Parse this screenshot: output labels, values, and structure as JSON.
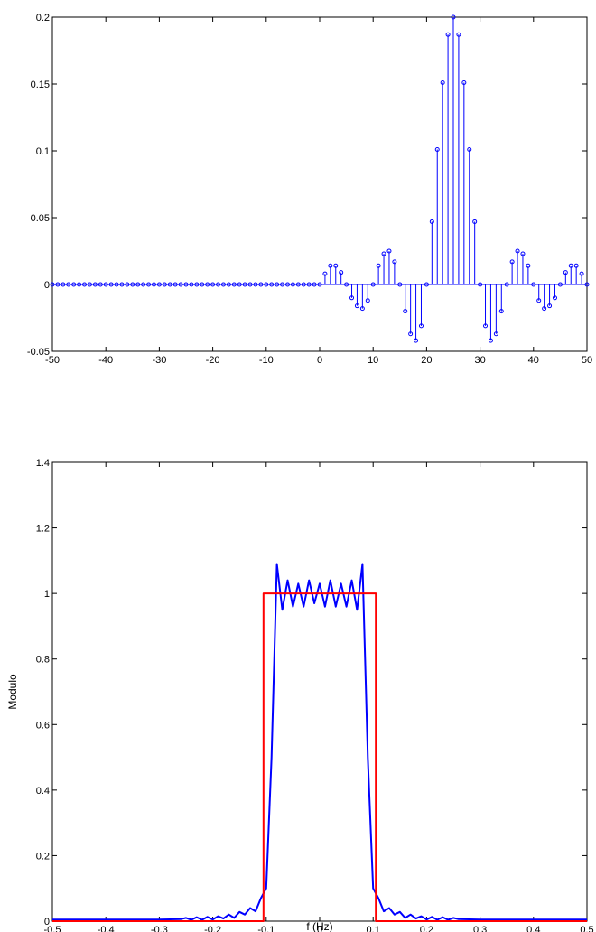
{
  "chart_data": [
    {
      "type": "stem",
      "title": "",
      "xlabel": "",
      "ylabel": "",
      "xlim": [
        -50,
        50
      ],
      "ylim": [
        -0.05,
        0.2
      ],
      "xticks": [
        -50,
        -40,
        -30,
        -20,
        -10,
        0,
        10,
        20,
        30,
        40,
        50
      ],
      "xtick_labels": [
        "-50",
        "-40",
        "-30",
        "-20",
        "-10",
        "0",
        "10",
        "20",
        "30",
        "40",
        "50"
      ],
      "yticks": [
        -0.05,
        0,
        0.05,
        0.1,
        0.15,
        0.2
      ],
      "ytick_labels": [
        "-0.05",
        "0",
        "0.05",
        "0.1",
        "0.15",
        "0.2"
      ],
      "color": "#0000ff",
      "x_start": -50,
      "x_step": 1,
      "values": [
        0,
        0,
        0,
        0,
        0,
        0,
        0,
        0,
        0,
        0,
        0,
        0,
        0,
        0,
        0,
        0,
        0,
        0,
        0,
        0,
        0,
        0,
        0,
        0,
        0,
        0,
        0,
        0,
        0,
        0,
        0,
        0,
        0,
        0,
        0,
        0,
        0,
        0,
        0,
        0,
        0,
        0,
        0,
        0,
        0,
        0,
        0,
        0,
        0,
        0,
        0,
        0.008,
        0.014,
        0.014,
        0.009,
        0,
        -0.01,
        -0.016,
        -0.018,
        -0.012,
        0,
        0.014,
        0.023,
        0.025,
        0.017,
        0,
        -0.02,
        -0.037,
        -0.042,
        -0.031,
        0,
        0.047,
        0.101,
        0.151,
        0.187,
        0.2,
        0.187,
        0.151,
        0.101,
        0.047,
        0,
        -0.031,
        -0.042,
        -0.037,
        -0.02,
        0,
        0.017,
        0.025,
        0.023,
        0.014,
        0,
        -0.012,
        -0.018,
        -0.016,
        -0.01,
        0,
        0.009,
        0.014,
        0.014,
        0.008,
        0
      ]
    },
    {
      "type": "line",
      "title": "",
      "xlabel": "f (Hz)",
      "ylabel": "Modulo",
      "xlim": [
        -0.5,
        0.5
      ],
      "ylim": [
        0,
        1.4
      ],
      "xticks": [
        -0.5,
        -0.4,
        -0.3,
        -0.2,
        -0.1,
        0,
        0.1,
        0.2,
        0.3,
        0.4,
        0.5
      ],
      "xtick_labels": [
        "-0.5",
        "-0.4",
        "-0.3",
        "-0.2",
        "-0.1",
        "0",
        "0.1",
        "0.2",
        "0.3",
        "0.4",
        "0.5"
      ],
      "yticks": [
        0,
        0.2,
        0.4,
        0.6,
        0.8,
        1,
        1.2,
        1.4
      ],
      "ytick_labels": [
        "0",
        "0.2",
        "0.4",
        "0.6",
        "0.8",
        "1",
        "1.2",
        "1.4"
      ],
      "series": [
        {
          "color": "#0000ff",
          "x": [
            -0.5,
            -0.4,
            -0.3,
            -0.26,
            -0.25,
            -0.24,
            -0.23,
            -0.22,
            -0.21,
            -0.2,
            -0.19,
            -0.18,
            -0.17,
            -0.16,
            -0.15,
            -0.14,
            -0.13,
            -0.12,
            -0.11,
            -0.1,
            -0.09,
            -0.08,
            -0.07,
            -0.06,
            -0.05,
            -0.04,
            -0.03,
            -0.02,
            -0.01,
            0,
            0.01,
            0.02,
            0.03,
            0.04,
            0.05,
            0.06,
            0.07,
            0.08,
            0.09,
            0.1,
            0.11,
            0.12,
            0.13,
            0.14,
            0.15,
            0.16,
            0.17,
            0.18,
            0.19,
            0.2,
            0.21,
            0.22,
            0.23,
            0.24,
            0.25,
            0.26,
            0.3,
            0.4,
            0.5
          ],
          "y": [
            0.005,
            0.005,
            0.005,
            0.006,
            0.01,
            0.004,
            0.012,
            0.004,
            0.013,
            0.005,
            0.015,
            0.008,
            0.02,
            0.01,
            0.028,
            0.02,
            0.04,
            0.03,
            0.07,
            0.1,
            0.5,
            1.09,
            0.95,
            1.04,
            0.96,
            1.03,
            0.96,
            1.04,
            0.97,
            1.03,
            0.96,
            1.04,
            0.96,
            1.03,
            0.96,
            1.04,
            0.95,
            1.09,
            0.5,
            0.1,
            0.07,
            0.03,
            0.04,
            0.02,
            0.028,
            0.01,
            0.02,
            0.008,
            0.015,
            0.005,
            0.013,
            0.004,
            0.012,
            0.004,
            0.01,
            0.006,
            0.005,
            0.005,
            0.005
          ]
        },
        {
          "color": "#ff0000",
          "x": [
            -0.5,
            -0.105,
            -0.105,
            0.105,
            0.105,
            0.5
          ],
          "y": [
            0,
            0,
            1,
            1,
            0,
            0
          ]
        }
      ]
    }
  ]
}
